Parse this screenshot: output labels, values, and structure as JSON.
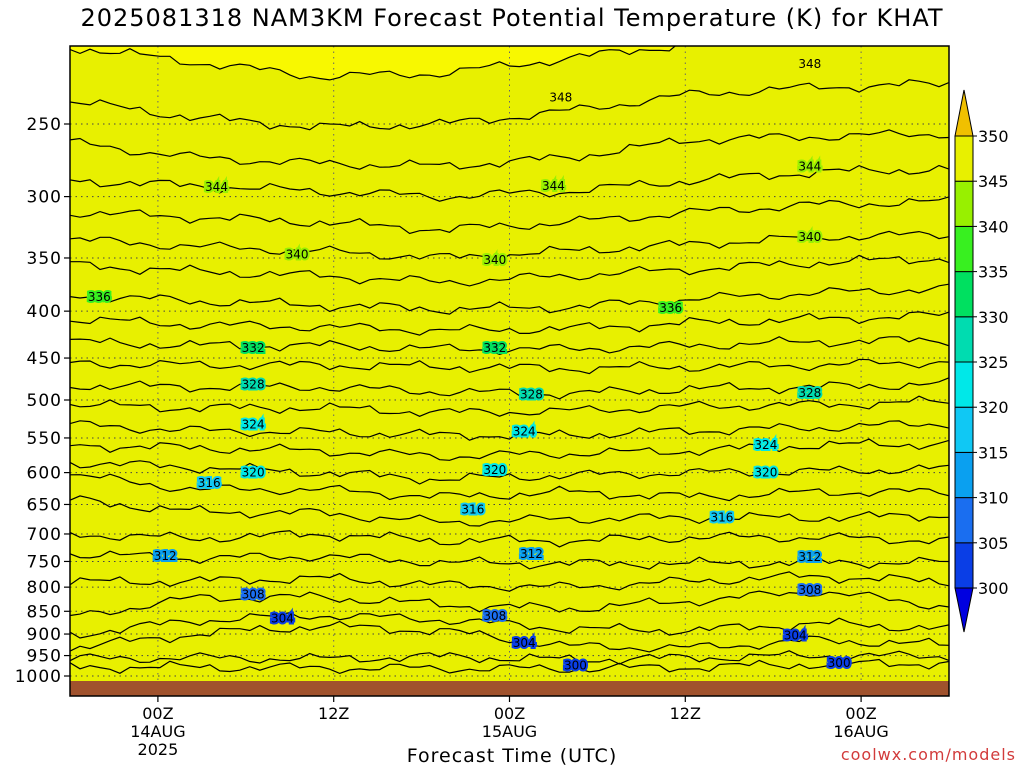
{
  "chart_data": {
    "type": "heatmap",
    "title": "2025081318 NAM3KM Forecast Potential Temperature (K) for KHAT",
    "xlabel": "Forecast Time (UTC)",
    "ylabel": "",
    "y_scale": "log-pressure",
    "ylim": [
      1000,
      200
    ],
    "y_ticks": [
      250,
      300,
      350,
      400,
      450,
      500,
      550,
      600,
      650,
      700,
      750,
      800,
      850,
      900,
      950,
      1000
    ],
    "x_ticks": [
      {
        "line1": "00Z",
        "line2": "14AUG",
        "line3": "2025"
      },
      {
        "line1": "12Z",
        "line2": "",
        "line3": ""
      },
      {
        "line1": "00Z",
        "line2": "15AUG",
        "line3": ""
      },
      {
        "line1": "12Z",
        "line2": "",
        "line3": ""
      },
      {
        "line1": "00Z",
        "line2": "16AUG",
        "line3": ""
      }
    ],
    "x_tick_hours": [
      6,
      18,
      30,
      42,
      54
    ],
    "x_range_hours": [
      0,
      60
    ],
    "colorbar": {
      "levels": [
        300,
        305,
        310,
        315,
        320,
        325,
        330,
        335,
        340,
        345,
        350
      ],
      "labels": [
        "300",
        "305",
        "310",
        "315",
        "320",
        "325",
        "330",
        "335",
        "340",
        "345",
        "350"
      ],
      "colors": [
        "#0000e0",
        "#0a3ee6",
        "#1a6ef0",
        "#0aa0f0",
        "#10c8f4",
        "#00e8e8",
        "#00dcb0",
        "#00e060",
        "#38f020",
        "#98f000",
        "#e8f000",
        "#f8f800",
        "#ffffff"
      ],
      "extend": "both"
    },
    "contour_interval": 2,
    "contours": [
      {
        "value": 300,
        "pressures": [
          978,
          978,
          980,
          981,
          982,
          978,
          971,
          968
        ]
      },
      {
        "value": 302,
        "pressures": [
          958,
          955,
          958,
          952,
          960,
          955,
          950,
          952
        ]
      },
      {
        "value": 304,
        "pressures": [
          932,
          900,
          882,
          893,
          928,
          932,
          914,
          925
        ]
      },
      {
        "value": 306,
        "pressures": [
          902,
          870,
          858,
          868,
          888,
          892,
          876,
          888
        ]
      },
      {
        "value": 308,
        "pressures": [
          862,
          822,
          820,
          836,
          845,
          828,
          808,
          840
        ]
      },
      {
        "value": 310,
        "pressures": [
          790,
          788,
          782,
          796,
          800,
          788,
          778,
          790
        ]
      },
      {
        "value": 312,
        "pressures": [
          736,
          744,
          740,
          752,
          754,
          754,
          752,
          752
        ]
      },
      {
        "value": 314,
        "pressures": [
          700,
          708,
          700,
          712,
          712,
          706,
          706,
          712
        ]
      },
      {
        "value": 316,
        "pressures": [
          642,
          662,
          664,
          680,
          674,
          672,
          672,
          668
        ]
      },
      {
        "value": 318,
        "pressures": [
          603,
          626,
          626,
          638,
          630,
          638,
          630,
          630
        ]
      },
      {
        "value": 320,
        "pressures": [
          585,
          592,
          600,
          610,
          604,
          600,
          598,
          594
        ]
      },
      {
        "value": 322,
        "pressures": [
          560,
          564,
          568,
          576,
          572,
          568,
          560,
          558
        ]
      },
      {
        "value": 324,
        "pressures": [
          532,
          540,
          542,
          546,
          546,
          540,
          536,
          530
        ]
      },
      {
        "value": 326,
        "pressures": [
          506,
          510,
          510,
          516,
          514,
          508,
          506,
          502
        ]
      },
      {
        "value": 328,
        "pressures": [
          482,
          484,
          484,
          490,
          492,
          486,
          484,
          480
        ]
      },
      {
        "value": 330,
        "pressures": [
          456,
          458,
          458,
          460,
          462,
          460,
          458,
          454
        ]
      },
      {
        "value": 332,
        "pressures": [
          432,
          436,
          436,
          440,
          440,
          436,
          432,
          430
        ]
      },
      {
        "value": 334,
        "pressures": [
          408,
          414,
          416,
          420,
          418,
          412,
          408,
          404
        ]
      },
      {
        "value": 336,
        "pressures": [
          384,
          390,
          394,
          398,
          396,
          388,
          382,
          378
        ]
      },
      {
        "value": 338,
        "pressures": [
          356,
          362,
          366,
          372,
          366,
          360,
          354,
          350
        ]
      },
      {
        "value": 340,
        "pressures": [
          334,
          340,
          344,
          350,
          344,
          338,
          332,
          330
        ]
      },
      {
        "value": 342,
        "pressures": [
          312,
          316,
          320,
          326,
          320,
          312,
          306,
          304
        ]
      },
      {
        "value": 344,
        "pressures": [
          288,
          292,
          296,
          300,
          296,
          288,
          282,
          280
        ]
      },
      {
        "value": 346,
        "pressures": [
          262,
          272,
          276,
          278,
          272,
          260,
          258,
          256
        ]
      },
      {
        "value": 348,
        "pressures": [
          236,
          246,
          252,
          250,
          242,
          232,
          228,
          226
        ]
      },
      {
        "value": 350,
        "pressures": [
          206,
          214,
          222,
          220,
          212,
          204,
          200,
          200
        ]
      }
    ],
    "contour_hours": [
      0,
      8.5,
      17,
      25.5,
      34,
      42.5,
      51,
      60
    ],
    "contour_labels": [
      {
        "text": "348",
        "hour": 33.5,
        "pressure": 234
      },
      {
        "text": "348",
        "hour": 50.5,
        "pressure": 215
      },
      {
        "text": "344",
        "hour": 10,
        "pressure": 293
      },
      {
        "text": "344",
        "hour": 33,
        "pressure": 292
      },
      {
        "text": "344",
        "hour": 50.5,
        "pressure": 278
      },
      {
        "text": "340",
        "hour": 15.5,
        "pressure": 347
      },
      {
        "text": "340",
        "hour": 29,
        "pressure": 352
      },
      {
        "text": "340",
        "hour": 50.5,
        "pressure": 332
      },
      {
        "text": "336",
        "hour": 2,
        "pressure": 386
      },
      {
        "text": "336",
        "hour": 41,
        "pressure": 397
      },
      {
        "text": "332",
        "hour": 12.5,
        "pressure": 439
      },
      {
        "text": "332",
        "hour": 29,
        "pressure": 439
      },
      {
        "text": "328",
        "hour": 12.5,
        "pressure": 481
      },
      {
        "text": "328",
        "hour": 31.5,
        "pressure": 493
      },
      {
        "text": "328",
        "hour": 50.5,
        "pressure": 491
      },
      {
        "text": "324",
        "hour": 12.5,
        "pressure": 532
      },
      {
        "text": "324",
        "hour": 31,
        "pressure": 541
      },
      {
        "text": "324",
        "hour": 47.5,
        "pressure": 560
      },
      {
        "text": "320",
        "hour": 12.5,
        "pressure": 600
      },
      {
        "text": "320",
        "hour": 29,
        "pressure": 596
      },
      {
        "text": "320",
        "hour": 47.5,
        "pressure": 600
      },
      {
        "text": "316",
        "hour": 9.5,
        "pressure": 616
      },
      {
        "text": "316",
        "hour": 27.5,
        "pressure": 658
      },
      {
        "text": "316",
        "hour": 44.5,
        "pressure": 672
      },
      {
        "text": "312",
        "hour": 6.5,
        "pressure": 740
      },
      {
        "text": "312",
        "hour": 31.5,
        "pressure": 736
      },
      {
        "text": "312",
        "hour": 50.5,
        "pressure": 742
      },
      {
        "text": "308",
        "hour": 12.5,
        "pressure": 815
      },
      {
        "text": "308",
        "hour": 29,
        "pressure": 860
      },
      {
        "text": "308",
        "hour": 50.5,
        "pressure": 806
      },
      {
        "text": "304",
        "hour": 14.5,
        "pressure": 865
      },
      {
        "text": "304",
        "hour": 31,
        "pressure": 921
      },
      {
        "text": "304",
        "hour": 49.5,
        "pressure": 903
      },
      {
        "text": "300",
        "hour": 34.5,
        "pressure": 974
      },
      {
        "text": "300",
        "hour": 52.5,
        "pressure": 968
      }
    ],
    "ground_color": "#a0522d"
  },
  "credit": "coolwx.com/models"
}
